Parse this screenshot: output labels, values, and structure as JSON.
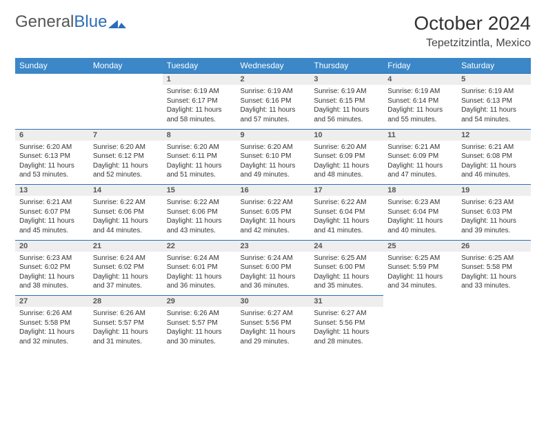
{
  "logo": {
    "text1": "General",
    "text2": "Blue"
  },
  "header": {
    "month": "October 2024",
    "location": "Tepetzitzintla, Mexico"
  },
  "colors": {
    "headerBg": "#3b87c8",
    "dayBarBg": "#eeeeee",
    "dayBarBorder": "#2a6db8"
  },
  "weekdays": [
    "Sunday",
    "Monday",
    "Tuesday",
    "Wednesday",
    "Thursday",
    "Friday",
    "Saturday"
  ],
  "weeks": [
    [
      null,
      null,
      {
        "n": "1",
        "sr": "Sunrise: 6:19 AM",
        "ss": "Sunset: 6:17 PM",
        "dl": "Daylight: 11 hours and 58 minutes."
      },
      {
        "n": "2",
        "sr": "Sunrise: 6:19 AM",
        "ss": "Sunset: 6:16 PM",
        "dl": "Daylight: 11 hours and 57 minutes."
      },
      {
        "n": "3",
        "sr": "Sunrise: 6:19 AM",
        "ss": "Sunset: 6:15 PM",
        "dl": "Daylight: 11 hours and 56 minutes."
      },
      {
        "n": "4",
        "sr": "Sunrise: 6:19 AM",
        "ss": "Sunset: 6:14 PM",
        "dl": "Daylight: 11 hours and 55 minutes."
      },
      {
        "n": "5",
        "sr": "Sunrise: 6:19 AM",
        "ss": "Sunset: 6:13 PM",
        "dl": "Daylight: 11 hours and 54 minutes."
      }
    ],
    [
      {
        "n": "6",
        "sr": "Sunrise: 6:20 AM",
        "ss": "Sunset: 6:13 PM",
        "dl": "Daylight: 11 hours and 53 minutes."
      },
      {
        "n": "7",
        "sr": "Sunrise: 6:20 AM",
        "ss": "Sunset: 6:12 PM",
        "dl": "Daylight: 11 hours and 52 minutes."
      },
      {
        "n": "8",
        "sr": "Sunrise: 6:20 AM",
        "ss": "Sunset: 6:11 PM",
        "dl": "Daylight: 11 hours and 51 minutes."
      },
      {
        "n": "9",
        "sr": "Sunrise: 6:20 AM",
        "ss": "Sunset: 6:10 PM",
        "dl": "Daylight: 11 hours and 49 minutes."
      },
      {
        "n": "10",
        "sr": "Sunrise: 6:20 AM",
        "ss": "Sunset: 6:09 PM",
        "dl": "Daylight: 11 hours and 48 minutes."
      },
      {
        "n": "11",
        "sr": "Sunrise: 6:21 AM",
        "ss": "Sunset: 6:09 PM",
        "dl": "Daylight: 11 hours and 47 minutes."
      },
      {
        "n": "12",
        "sr": "Sunrise: 6:21 AM",
        "ss": "Sunset: 6:08 PM",
        "dl": "Daylight: 11 hours and 46 minutes."
      }
    ],
    [
      {
        "n": "13",
        "sr": "Sunrise: 6:21 AM",
        "ss": "Sunset: 6:07 PM",
        "dl": "Daylight: 11 hours and 45 minutes."
      },
      {
        "n": "14",
        "sr": "Sunrise: 6:22 AM",
        "ss": "Sunset: 6:06 PM",
        "dl": "Daylight: 11 hours and 44 minutes."
      },
      {
        "n": "15",
        "sr": "Sunrise: 6:22 AM",
        "ss": "Sunset: 6:06 PM",
        "dl": "Daylight: 11 hours and 43 minutes."
      },
      {
        "n": "16",
        "sr": "Sunrise: 6:22 AM",
        "ss": "Sunset: 6:05 PM",
        "dl": "Daylight: 11 hours and 42 minutes."
      },
      {
        "n": "17",
        "sr": "Sunrise: 6:22 AM",
        "ss": "Sunset: 6:04 PM",
        "dl": "Daylight: 11 hours and 41 minutes."
      },
      {
        "n": "18",
        "sr": "Sunrise: 6:23 AM",
        "ss": "Sunset: 6:04 PM",
        "dl": "Daylight: 11 hours and 40 minutes."
      },
      {
        "n": "19",
        "sr": "Sunrise: 6:23 AM",
        "ss": "Sunset: 6:03 PM",
        "dl": "Daylight: 11 hours and 39 minutes."
      }
    ],
    [
      {
        "n": "20",
        "sr": "Sunrise: 6:23 AM",
        "ss": "Sunset: 6:02 PM",
        "dl": "Daylight: 11 hours and 38 minutes."
      },
      {
        "n": "21",
        "sr": "Sunrise: 6:24 AM",
        "ss": "Sunset: 6:02 PM",
        "dl": "Daylight: 11 hours and 37 minutes."
      },
      {
        "n": "22",
        "sr": "Sunrise: 6:24 AM",
        "ss": "Sunset: 6:01 PM",
        "dl": "Daylight: 11 hours and 36 minutes."
      },
      {
        "n": "23",
        "sr": "Sunrise: 6:24 AM",
        "ss": "Sunset: 6:00 PM",
        "dl": "Daylight: 11 hours and 36 minutes."
      },
      {
        "n": "24",
        "sr": "Sunrise: 6:25 AM",
        "ss": "Sunset: 6:00 PM",
        "dl": "Daylight: 11 hours and 35 minutes."
      },
      {
        "n": "25",
        "sr": "Sunrise: 6:25 AM",
        "ss": "Sunset: 5:59 PM",
        "dl": "Daylight: 11 hours and 34 minutes."
      },
      {
        "n": "26",
        "sr": "Sunrise: 6:25 AM",
        "ss": "Sunset: 5:58 PM",
        "dl": "Daylight: 11 hours and 33 minutes."
      }
    ],
    [
      {
        "n": "27",
        "sr": "Sunrise: 6:26 AM",
        "ss": "Sunset: 5:58 PM",
        "dl": "Daylight: 11 hours and 32 minutes."
      },
      {
        "n": "28",
        "sr": "Sunrise: 6:26 AM",
        "ss": "Sunset: 5:57 PM",
        "dl": "Daylight: 11 hours and 31 minutes."
      },
      {
        "n": "29",
        "sr": "Sunrise: 6:26 AM",
        "ss": "Sunset: 5:57 PM",
        "dl": "Daylight: 11 hours and 30 minutes."
      },
      {
        "n": "30",
        "sr": "Sunrise: 6:27 AM",
        "ss": "Sunset: 5:56 PM",
        "dl": "Daylight: 11 hours and 29 minutes."
      },
      {
        "n": "31",
        "sr": "Sunrise: 6:27 AM",
        "ss": "Sunset: 5:56 PM",
        "dl": "Daylight: 11 hours and 28 minutes."
      },
      null,
      null
    ]
  ]
}
